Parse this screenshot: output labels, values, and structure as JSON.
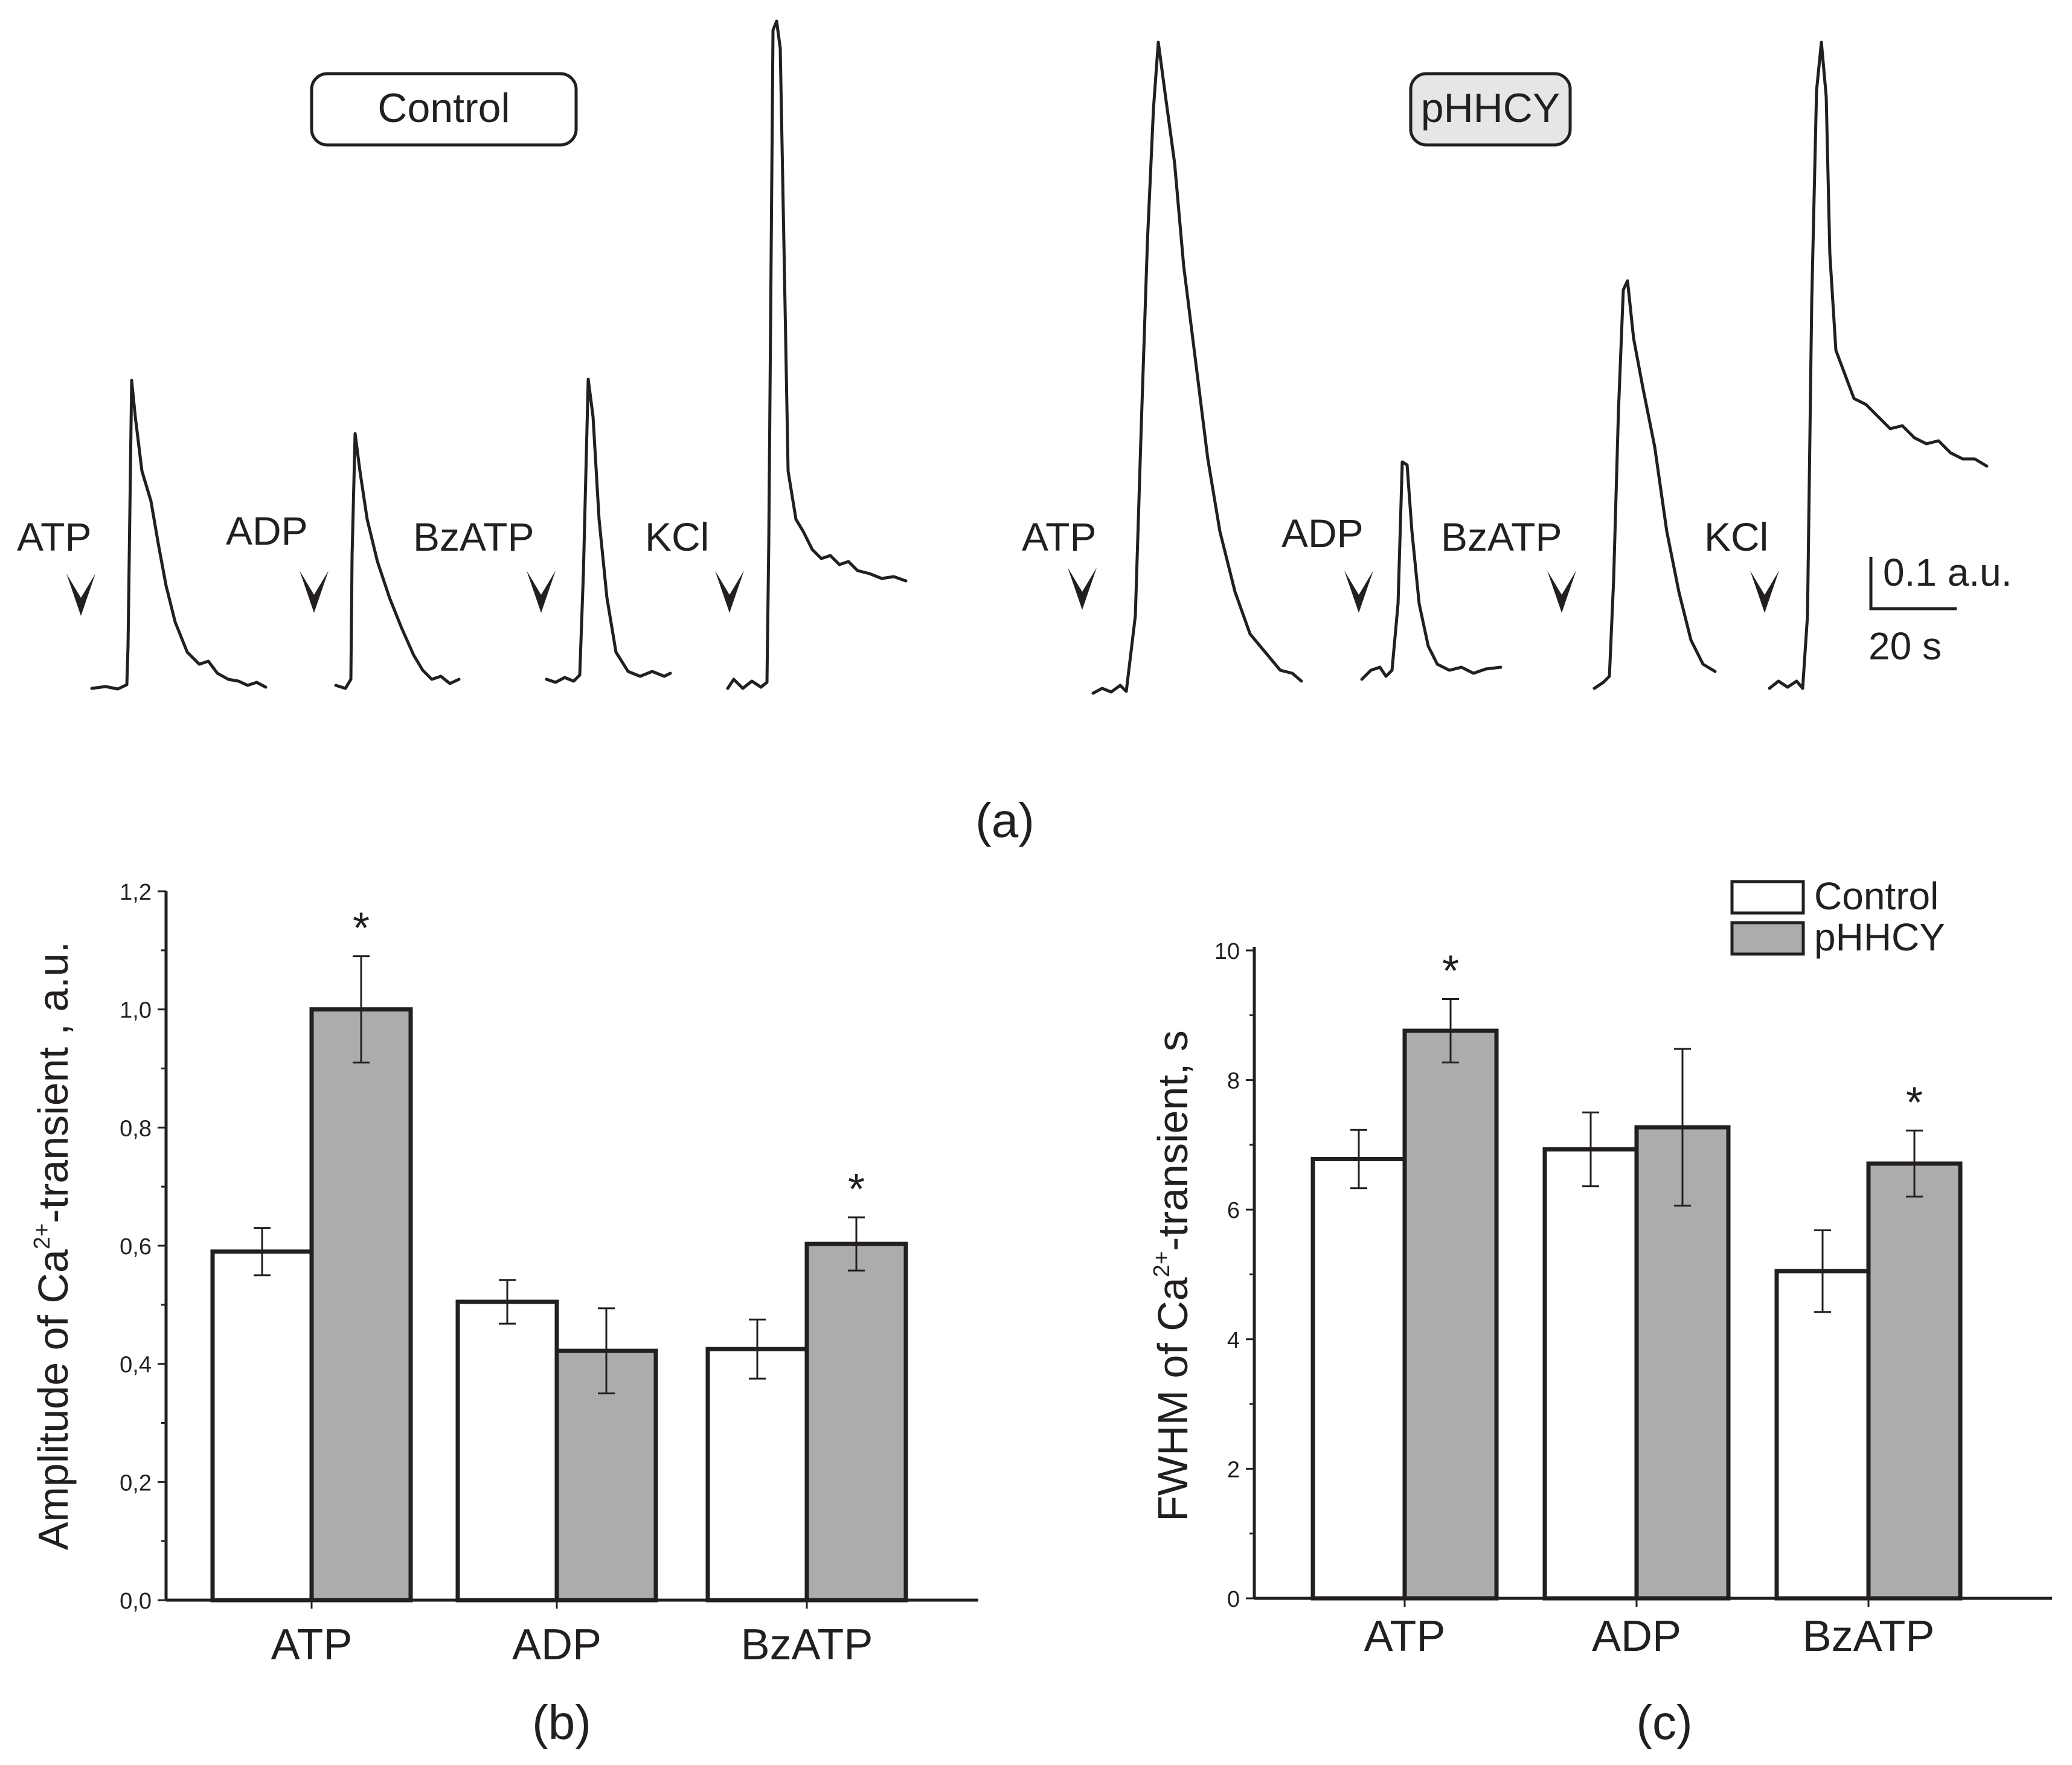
{
  "panel_a": {
    "label": "(a)",
    "control_tag": "Control",
    "phhcy_tag": "pHHCY",
    "stimuli": [
      "ATP",
      "ADP",
      "BzATP",
      "KCl"
    ],
    "scale_amplitude": "0.1 a.u.",
    "scale_time": "20 s"
  },
  "panel_b": {
    "label": "(b)"
  },
  "panel_c": {
    "label": "(c)"
  },
  "legend": {
    "control": "Control",
    "phhcy": "pHHCY"
  },
  "colors": {
    "ink": "#231f20",
    "control_fill": "#ffffff",
    "phhcy_fill": "#acacac",
    "tag_fill": "#e6e6e6"
  },
  "chart_data": [
    {
      "type": "bar",
      "panel": "b",
      "categories": [
        "ATP",
        "ADP",
        "BzATP"
      ],
      "series": [
        {
          "name": "Control",
          "values": [
            0.59,
            0.505,
            0.425
          ],
          "errors": [
            0.04,
            0.037,
            0.05
          ]
        },
        {
          "name": "pHHCY",
          "values": [
            1.0,
            0.422,
            0.603
          ],
          "errors": [
            0.09,
            0.072,
            0.045
          ]
        }
      ],
      "significance": [
        "*",
        "",
        "*"
      ],
      "ylabel": "Amplitude of Ca2+-transient , a.u.",
      "ylabel_parts": {
        "pre": "Amplitude of Ca",
        "sup": "2+",
        "post": "-transient , a.u."
      },
      "ylim": [
        0,
        1.2
      ],
      "yticks": [
        "0,0",
        "0,2",
        "0,4",
        "0,6",
        "0,8",
        "1,0",
        "1,2"
      ],
      "xlabel": ""
    },
    {
      "type": "bar",
      "panel": "c",
      "categories": [
        "ATP",
        "ADP",
        "BzATP"
      ],
      "series": [
        {
          "name": "Control",
          "values": [
            6.78,
            6.93,
            5.05
          ],
          "errors": [
            0.45,
            0.57,
            0.63
          ]
        },
        {
          "name": "pHHCY",
          "values": [
            8.76,
            7.27,
            6.71
          ],
          "errors": [
            0.49,
            1.21,
            0.51
          ]
        }
      ],
      "significance": [
        "*",
        "",
        "*"
      ],
      "ylabel": "FWHM of Ca2+-transient, s",
      "ylabel_parts": {
        "pre": "FWHM of Ca",
        "sup": "2+",
        "post": "-transient, s"
      },
      "ylim": [
        0,
        10
      ],
      "yticks": [
        "0",
        "2",
        "4",
        "6",
        "8",
        "10"
      ],
      "xlabel": ""
    }
  ]
}
